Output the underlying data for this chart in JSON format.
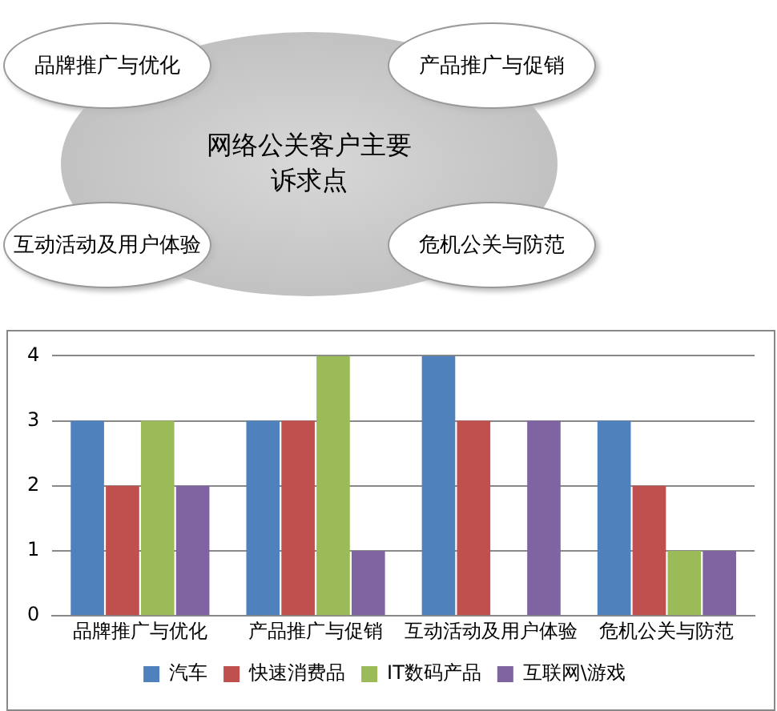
{
  "chart_data": [
    {
      "type": "other",
      "annotations": [
        "网络公关客户主要诉求点",
        "品牌推广与优化",
        "产品推广与促销",
        "互动活动及用户体验",
        "危机公关与防范"
      ]
    },
    {
      "type": "bar",
      "categories": [
        "品牌推广与优化",
        "产品推广与促销",
        "互动活动及用户体验",
        "危机公关与防范"
      ],
      "series": [
        {
          "name": "汽车",
          "color": "#4f81bd",
          "values": [
            3,
            3,
            4,
            3
          ]
        },
        {
          "name": "快速消费品",
          "color": "#c0504d",
          "values": [
            2,
            3,
            3,
            2
          ]
        },
        {
          "name": "IT数码产品",
          "color": "#9bbb59",
          "values": [
            3,
            4,
            0,
            1
          ]
        },
        {
          "name": "互联网\\游戏",
          "color": "#8064a2",
          "values": [
            2,
            1,
            3,
            1
          ]
        }
      ],
      "ylim": [
        0,
        4
      ],
      "yticks": [
        0,
        1,
        2,
        3,
        4
      ],
      "grid": "y",
      "legend": "bottom"
    }
  ]
}
